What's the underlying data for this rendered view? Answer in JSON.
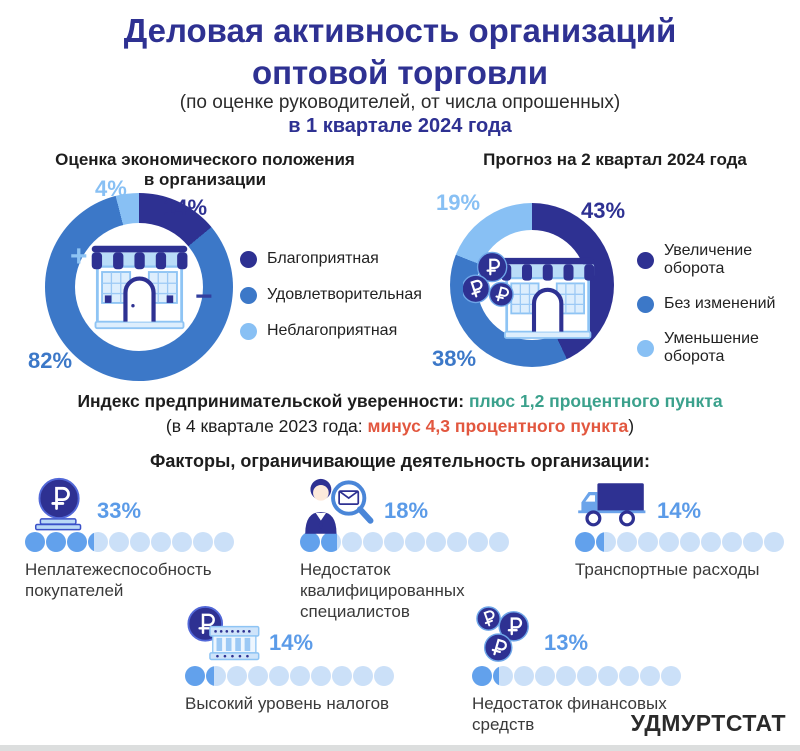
{
  "header": {
    "title_line1": "Деловая активность организаций",
    "title_line2": "оптовой торговли",
    "subtitle": "(по оценке руководителей, от числа опрошенных)",
    "period": "в 1 квартале 2024 года"
  },
  "charts": {
    "left": {
      "title_line1": "Оценка экономического положения",
      "title_line2": "в организации",
      "segments": [
        {
          "label": "Благоприятная",
          "value": 14,
          "pct_label": "14%",
          "color": "#2e3192"
        },
        {
          "label": "Удовлетворительная",
          "value": 82,
          "pct_label": "82%",
          "color": "#3c78c8"
        },
        {
          "label": "Неблагоприятная",
          "value": 4,
          "pct_label": "4%",
          "color": "#88c0f4"
        }
      ],
      "plus_sign": "+",
      "minus_sign": "−"
    },
    "right": {
      "title": "Прогноз на 2 квартал 2024 года",
      "segments": [
        {
          "label": "Увеличение оборота",
          "value": 43,
          "pct_label": "43%",
          "color": "#2e3192"
        },
        {
          "label": "Без изменений",
          "value": 38,
          "pct_label": "38%",
          "color": "#3c78c8"
        },
        {
          "label": "Уменьшение оборота",
          "value": 19,
          "pct_label": "19%",
          "color": "#88c0f4"
        }
      ]
    }
  },
  "index": {
    "label": "Индекс предпринимательской уверенности:",
    "current": "плюс 1,2 процентного пункта",
    "current_color": "#3ba18c",
    "previous_prefix": "(в 4 квартале 2023 года:",
    "previous": "минус 4,3 процентного пункта",
    "previous_suffix": ")",
    "previous_color": "#e2573f"
  },
  "factors": {
    "title": "Факторы, ограничивающие деятельность организации:",
    "items": [
      {
        "icon": "ruble-coin-on-stand",
        "pct_label": "33%",
        "value": 33,
        "label": "Неплатежеспособность покупателей"
      },
      {
        "icon": "recruiter-with-magnifier",
        "pct_label": "18%",
        "value": 18,
        "label": "Недостаток квалифицированных специалистов"
      },
      {
        "icon": "truck",
        "pct_label": "14%",
        "value": 14,
        "label": "Транспортные расходы"
      },
      {
        "icon": "coin-and-bank",
        "pct_label": "14%",
        "value": 14,
        "label": "Высокий уровень налогов"
      },
      {
        "icon": "three-ruble-coins",
        "pct_label": "13%",
        "value": 13,
        "label": "Недостаток финансовых средств"
      }
    ]
  },
  "footer": {
    "org": "УДМУРТСТАТ"
  },
  "ui": {
    "navy": "#2e3192",
    "medium_blue": "#3c78c8",
    "light_blue": "#88c0f4",
    "factor_pct_color": "#5b9be8",
    "dot_filled": "#62a1ec",
    "dot_empty": "#cbe0f8"
  },
  "chart_data": [
    {
      "type": "pie",
      "subtype": "donut",
      "title": "Оценка экономического положения в организации",
      "labels": [
        "Благоприятная",
        "Удовлетворительная",
        "Неблагоприятная"
      ],
      "values": [
        14,
        82,
        4
      ],
      "unit": "%",
      "colors": [
        "#2e3192",
        "#3c78c8",
        "#88c0f4"
      ],
      "legend_position": "right"
    },
    {
      "type": "pie",
      "subtype": "donut",
      "title": "Прогноз на 2 квартал 2024 года",
      "labels": [
        "Увеличение оборота",
        "Без изменений",
        "Уменьшение оборота"
      ],
      "values": [
        43,
        38,
        19
      ],
      "unit": "%",
      "colors": [
        "#2e3192",
        "#3c78c8",
        "#88c0f4"
      ],
      "legend_position": "right"
    },
    {
      "type": "bar",
      "subtype": "dot-progress-10",
      "title": "Факторы, ограничивающие деятельность организации",
      "categories": [
        "Неплатежеспособность покупателей",
        "Недостаток квалифицированных специалистов",
        "Транспортные расходы",
        "Высокий уровень налогов",
        "Недостаток финансовых средств"
      ],
      "values": [
        33,
        18,
        14,
        14,
        13
      ],
      "unit": "%",
      "scale_max": 100
    }
  ]
}
